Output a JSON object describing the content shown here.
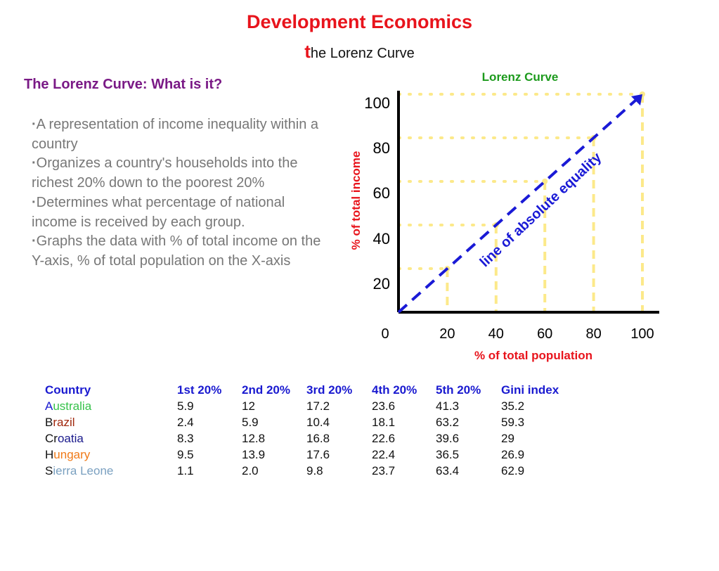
{
  "header": {
    "title": "Development Economics",
    "subtitle_lead": "t",
    "subtitle_rest": "he Lorenz Curve"
  },
  "section": {
    "heading": "The Lorenz Curve: What is it?",
    "bullets": [
      "A representation of income inequality within a country",
      "Organizes a country's households into the richest 20% down to the poorest 20%",
      "Determines what percentage of national income is received by each group.",
      "Graphs the data with % of total income on the Y-axis, % of total population on the X-axis"
    ]
  },
  "chart_data": {
    "type": "line",
    "title": "Lorenz Curve",
    "xlabel": "% of total population",
    "ylabel": "% of total income",
    "x_ticks": [
      "0",
      "20",
      "40",
      "60",
      "80",
      "100"
    ],
    "y_ticks": [
      "20",
      "40",
      "60",
      "80",
      "100"
    ],
    "xlim": [
      0,
      100
    ],
    "ylim": [
      0,
      100
    ],
    "grid_points": [
      {
        "x": 20,
        "y": 20
      },
      {
        "x": 40,
        "y": 40
      },
      {
        "x": 60,
        "y": 60
      },
      {
        "x": 80,
        "y": 80
      },
      {
        "x": 100,
        "y": 100
      }
    ],
    "series": [
      {
        "name": "line of absolute equality",
        "x": [
          0,
          100
        ],
        "y": [
          0,
          100
        ]
      }
    ],
    "colors": {
      "equality_line": "#1a1ad6",
      "guides": "#fce98a",
      "axes": "#000000",
      "axis_label": "#e8141c"
    }
  },
  "table": {
    "headers": [
      "Country",
      "1st 20%",
      "2nd 20%",
      "3rd 20%",
      "4th 20%",
      "5th 20%",
      "Gini index"
    ],
    "rows": [
      {
        "initial": "A",
        "rest": "ustralia",
        "color": "#35c24a",
        "values": [
          "5.9",
          "12",
          "17.2",
          "23.6",
          "41.3",
          "35.2"
        ]
      },
      {
        "initial": "B",
        "rest": "razil",
        "color": "#a0280e",
        "values": [
          "2.4",
          "5.9",
          "10.4",
          "18.1",
          "63.2",
          "59.3"
        ]
      },
      {
        "initial": "Cr",
        "rest": "oatia",
        "color": "#1a1a8c",
        "values": [
          "8.3",
          "12.8",
          "16.8",
          "22.6",
          "39.6",
          "29"
        ]
      },
      {
        "initial": "H",
        "rest": "ungary",
        "color": "#f07a18",
        "values": [
          "9.5",
          "13.9",
          "17.6",
          "22.4",
          "36.5",
          "26.9"
        ]
      },
      {
        "initial": "S",
        "rest": "ierra Leone",
        "color": "#7aa0c0",
        "values": [
          "1.1",
          "2.0",
          "9.8",
          "23.7",
          "63.4",
          "62.9"
        ]
      }
    ]
  }
}
